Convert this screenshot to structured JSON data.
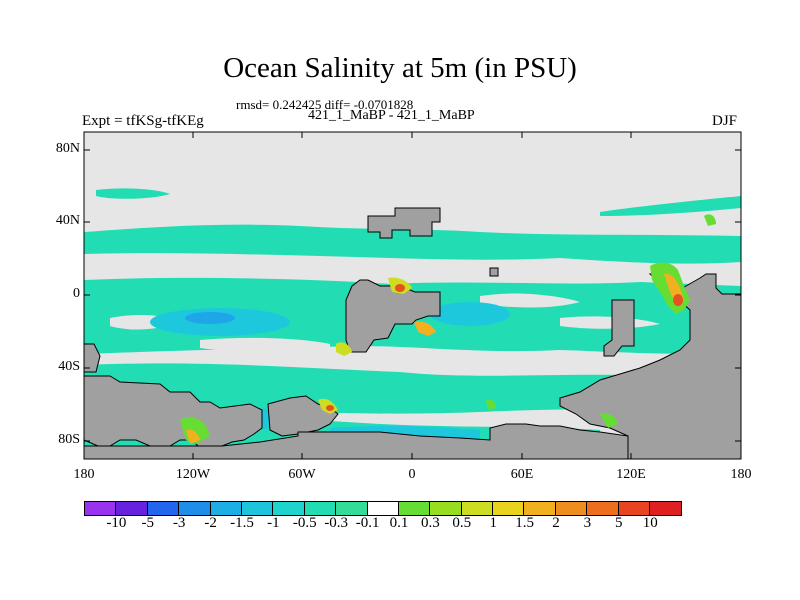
{
  "title": "Ocean Salinity at 5m (in PSU)",
  "stats": "rmsd= 0.242425 diff= -0.0701828",
  "comparison": "421_1_MaBP - 421_1_MaBP",
  "experiment": "Expt = tfKSg-tfKEg",
  "season": "DJF",
  "map": {
    "lat_ticks": [
      "80N",
      "40N",
      "0",
      "40S",
      "80S"
    ],
    "lon_ticks": [
      "180",
      "120W",
      "60W",
      "0",
      "60E",
      "120E",
      "180"
    ],
    "colors": {
      "neutral": "#e6e6e6",
      "land": "#a0a0a0",
      "teal": "#22ddb4",
      "cyan": "#1ec8dc",
      "blue": "#1ea6e8",
      "green": "#66dd33",
      "yellow": "#ccdd22",
      "orange": "#f0b020",
      "red": "#e85020"
    }
  },
  "colorbar": {
    "labels": [
      "-10",
      "-5",
      "-3",
      "-2",
      "-1.5",
      "-1",
      "-0.5",
      "-0.3",
      "-0.1",
      "0.1",
      "0.3",
      "0.5",
      "1",
      "1.5",
      "2",
      "3",
      "5",
      "10"
    ],
    "colors": [
      "#9933ee",
      "#6622dd",
      "#2266ee",
      "#1e8ee8",
      "#1eaee6",
      "#1ec4dc",
      "#1ed4cc",
      "#22ddb4",
      "#33dd99",
      "#ffffff",
      "#66dd33",
      "#99dd22",
      "#ccdd22",
      "#e8d41e",
      "#f0b020",
      "#ee8e1e",
      "#ee6e1e",
      "#e84422",
      "#e02020"
    ]
  }
}
